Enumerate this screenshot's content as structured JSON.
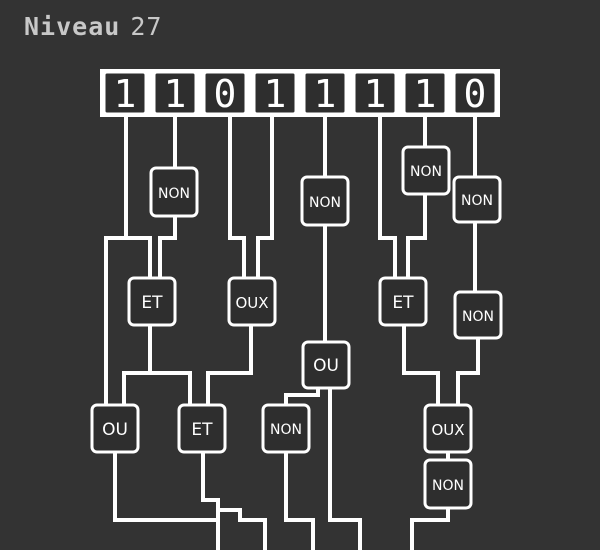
{
  "header": {
    "level_word": "Niveau",
    "level_number": "27"
  },
  "bits": [
    "1",
    "1",
    "0",
    "1",
    "1",
    "1",
    "1",
    "0"
  ],
  "gates": {
    "non_1": "NON",
    "non_2": "NON",
    "non_3": "NON",
    "non_4": "NON",
    "et_1": "ET",
    "oux_1": "OUX",
    "et_2": "ET",
    "non_5": "NON",
    "ou_1": "OU",
    "ou_2": "OU",
    "et_3": "ET",
    "non_6": "NON",
    "oux_2": "OUX",
    "non_7": "NON"
  },
  "colors": {
    "background": "#333333",
    "wire": "#ffffff",
    "title": "#c8c8c8"
  }
}
